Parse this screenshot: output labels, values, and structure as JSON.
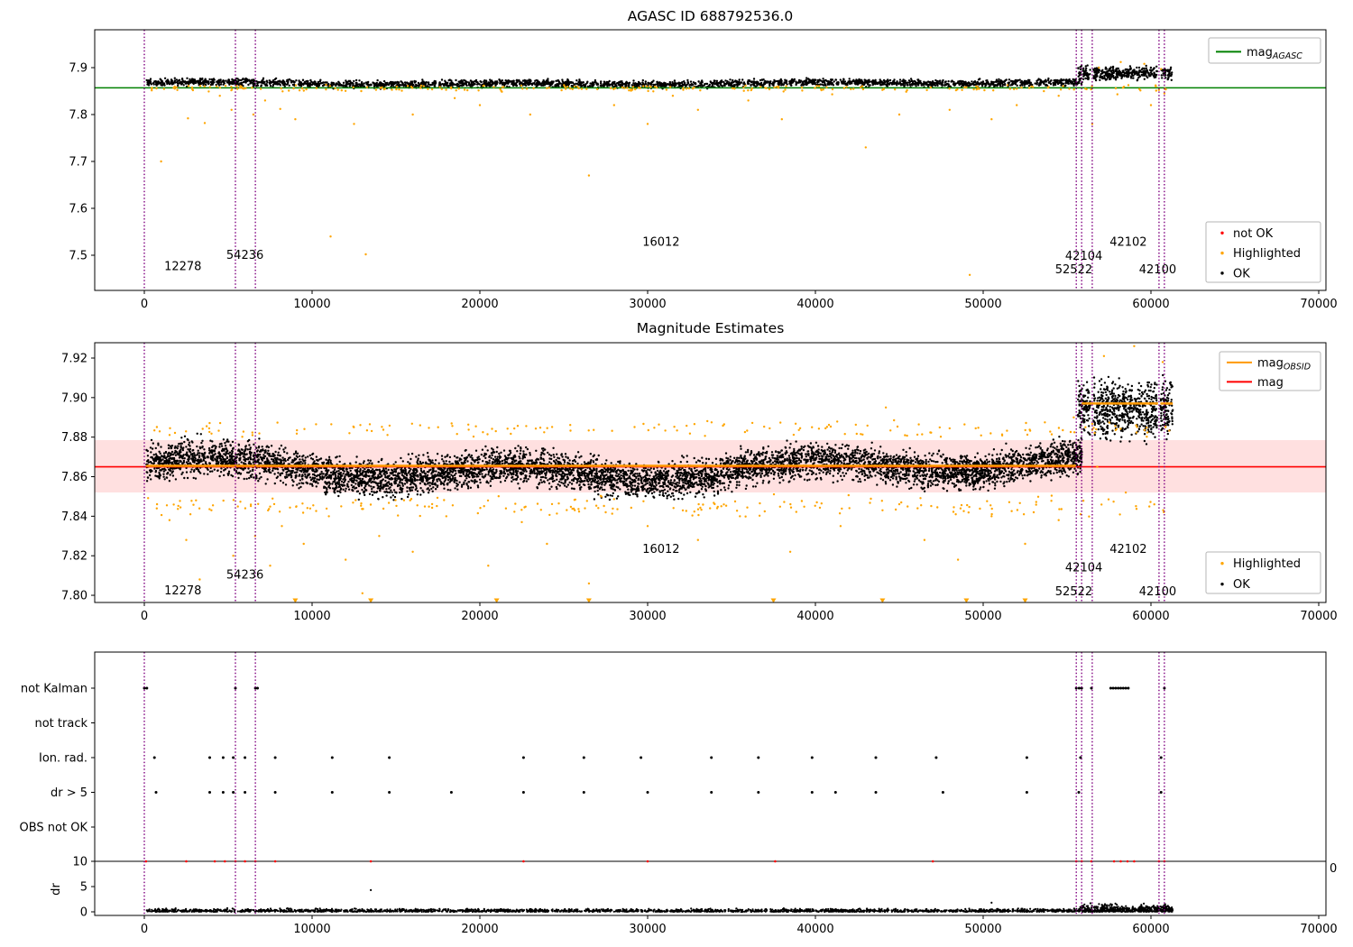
{
  "page": {
    "background": "#ffffff"
  },
  "colors": {
    "ok": "#000000",
    "highlighted": "#ffa500",
    "not_ok": "#ff0000",
    "mag_agasc_line": "#008000",
    "mag_obsid_line": "#ff9900",
    "mag_line": "#ff0000",
    "vline": "#800080",
    "band_fill": "rgba(255,0,0,0.12)",
    "frame": "#000000"
  },
  "chart_data": [
    {
      "type": "scatter",
      "title": "AGASC ID 688792536.0",
      "xlim": [
        -3000,
        70400
      ],
      "ylim": [
        7.425,
        7.98
      ],
      "xticks": [
        0,
        10000,
        20000,
        30000,
        40000,
        50000,
        60000,
        70000
      ],
      "yticks": [
        7.5,
        7.6,
        7.7,
        7.8,
        7.9
      ],
      "ytick_decimals": 1,
      "vlines": [
        0,
        5430,
        6620,
        55550,
        55870,
        56500,
        60480,
        60800
      ],
      "hlines": [
        {
          "y": 7.857,
          "color_key": "mag_agasc_line",
          "width": 1.5
        }
      ],
      "legend_upper": {
        "items": [
          {
            "sample": "line",
            "color_key": "mag_agasc_line",
            "label": "mag",
            "label_sub": "AGASC"
          }
        ]
      },
      "legend_lower": {
        "items": [
          {
            "sample": "dot",
            "color_key": "not_ok",
            "label": "not OK"
          },
          {
            "sample": "dot",
            "color_key": "highlighted",
            "label": "Highlighted"
          },
          {
            "sample": "dot",
            "color_key": "ok",
            "label": "OK"
          }
        ]
      },
      "annotations": [
        {
          "text": "12278",
          "x": 2300,
          "y": 7.468
        },
        {
          "text": "54236",
          "x": 6000,
          "y": 7.492
        },
        {
          "text": "16012",
          "x": 30800,
          "y": 7.52
        },
        {
          "text": "42104",
          "x": 56000,
          "y": 7.49
        },
        {
          "text": "52522",
          "x": 55400,
          "y": 7.462
        },
        {
          "text": "42102",
          "x": 58650,
          "y": 7.52
        },
        {
          "text": "42100",
          "x": 60400,
          "y": 7.462
        }
      ],
      "bands": [
        {
          "series": "ok",
          "x_min": 120,
          "x_max": 55900,
          "n": 2600,
          "y_center": 7.8665,
          "y_spread": 0.011,
          "wiggle": 0.002
        },
        {
          "series": "ok",
          "x_min": 55650,
          "x_max": 61250,
          "n": 420,
          "y_center": 7.888,
          "y_spread": 0.02,
          "wiggle": 0,
          "gaps": [
            [
              56380,
              56560
            ],
            [
              60380,
              60560
            ]
          ]
        },
        {
          "series": "highlighted",
          "x_min": 120,
          "x_max": 61200,
          "n": 230,
          "y_center": 7.856,
          "y_spread": 0.009,
          "wiggle": 0
        }
      ],
      "outliers": {
        "highlighted": [
          [
            1000,
            7.7
          ],
          [
            2600,
            7.792
          ],
          [
            3600,
            7.782
          ],
          [
            4500,
            7.84
          ],
          [
            5200,
            7.81
          ],
          [
            6500,
            7.8
          ],
          [
            7200,
            7.83
          ],
          [
            8100,
            7.812
          ],
          [
            9000,
            7.79
          ],
          [
            11100,
            7.54
          ],
          [
            12500,
            7.78
          ],
          [
            13200,
            7.502
          ],
          [
            16000,
            7.8
          ],
          [
            18500,
            7.835
          ],
          [
            20000,
            7.82
          ],
          [
            23000,
            7.8
          ],
          [
            26500,
            7.67
          ],
          [
            28000,
            7.82
          ],
          [
            30000,
            7.78
          ],
          [
            31500,
            7.84
          ],
          [
            33000,
            7.81
          ],
          [
            36000,
            7.83
          ],
          [
            38000,
            7.79
          ],
          [
            41000,
            7.843
          ],
          [
            43000,
            7.73
          ],
          [
            45000,
            7.8
          ],
          [
            48000,
            7.81
          ],
          [
            49200,
            7.458
          ],
          [
            50500,
            7.79
          ],
          [
            52000,
            7.82
          ],
          [
            54500,
            7.84
          ],
          [
            56500,
            7.78
          ],
          [
            58000,
            7.843
          ],
          [
            60000,
            7.82
          ],
          [
            60800,
            7.845
          ],
          [
            56900,
            7.9
          ],
          [
            58200,
            7.912
          ],
          [
            59600,
            7.908
          ],
          [
            60600,
            7.897
          ]
        ]
      }
    },
    {
      "type": "scatter",
      "title": "Magnitude Estimates",
      "xlim": [
        -3000,
        70400
      ],
      "ylim": [
        7.796,
        7.928
      ],
      "xticks": [
        0,
        10000,
        20000,
        30000,
        40000,
        50000,
        60000,
        70000
      ],
      "yticks": [
        7.8,
        7.82,
        7.84,
        7.86,
        7.88,
        7.9,
        7.92
      ],
      "ytick_decimals": 2,
      "vlines": [
        0,
        5430,
        6620,
        55550,
        55870,
        56500,
        60480,
        60800
      ],
      "shaded_band": {
        "y_min": 7.852,
        "y_max": 7.8785
      },
      "hlines": [
        {
          "y": 7.865,
          "color_key": "mag_line",
          "width": 1.6
        }
      ],
      "step_segments": [
        {
          "x0": 120,
          "x1": 55550,
          "y": 7.8655
        },
        {
          "x0": 55870,
          "x1": 60420,
          "y": 7.897
        },
        {
          "x0": 60560,
          "x1": 61300,
          "y": 7.897
        }
      ],
      "legend_upper": {
        "items": [
          {
            "sample": "line",
            "color_key": "mag_obsid_line",
            "label": "mag",
            "label_sub": "OBSID"
          },
          {
            "sample": "line",
            "color_key": "mag_line",
            "label": "mag"
          }
        ]
      },
      "legend_lower": {
        "items": [
          {
            "sample": "dot",
            "color_key": "highlighted",
            "label": "Highlighted"
          },
          {
            "sample": "dot",
            "color_key": "ok",
            "label": "OK"
          }
        ]
      },
      "annotations": [
        {
          "text": "12278",
          "x": 2300,
          "y": 7.8005
        },
        {
          "text": "54236",
          "x": 6000,
          "y": 7.8085
        },
        {
          "text": "16012",
          "x": 30800,
          "y": 7.8215
        },
        {
          "text": "42104",
          "x": 56000,
          "y": 7.812
        },
        {
          "text": "52522",
          "x": 55400,
          "y": 7.8
        },
        {
          "text": "42102",
          "x": 58650,
          "y": 7.8215
        },
        {
          "text": "42100",
          "x": 60400,
          "y": 7.8
        }
      ],
      "bands": [
        {
          "series": "ok",
          "x_min": 120,
          "x_max": 55900,
          "n": 6500,
          "y_center": 7.864,
          "y_spread": 0.0125,
          "wiggle": 0.004
        },
        {
          "series": "ok",
          "x_min": 55650,
          "x_max": 61300,
          "n": 800,
          "y_center": 7.894,
          "y_spread": 0.02,
          "wiggle": 0,
          "gaps": [
            [
              56380,
              56560
            ],
            [
              60380,
              60560
            ]
          ]
        },
        {
          "series": "highlighted",
          "x_min": 120,
          "x_max": 61200,
          "n": 200,
          "y_center": 7.845,
          "y_spread": 0.007,
          "wiggle": 0
        },
        {
          "series": "highlighted",
          "x_min": 120,
          "x_max": 61200,
          "n": 160,
          "y_center": 7.884,
          "y_spread": 0.006,
          "wiggle": 0
        }
      ],
      "outliers": {
        "highlighted": [
          [
            1500,
            7.838
          ],
          [
            2500,
            7.828
          ],
          [
            3300,
            7.808
          ],
          [
            4000,
            7.843
          ],
          [
            5300,
            7.82
          ],
          [
            6600,
            7.83
          ],
          [
            7500,
            7.815
          ],
          [
            8200,
            7.835
          ],
          [
            9500,
            7.826
          ],
          [
            11000,
            7.84
          ],
          [
            12000,
            7.818
          ],
          [
            13000,
            7.801
          ],
          [
            14000,
            7.83
          ],
          [
            16000,
            7.822
          ],
          [
            18000,
            7.84
          ],
          [
            20500,
            7.815
          ],
          [
            22500,
            7.837
          ],
          [
            24000,
            7.826
          ],
          [
            26500,
            7.806
          ],
          [
            27500,
            7.842
          ],
          [
            30000,
            7.835
          ],
          [
            33000,
            7.828
          ],
          [
            35500,
            7.84
          ],
          [
            38500,
            7.822
          ],
          [
            41500,
            7.835
          ],
          [
            44000,
            7.843
          ],
          [
            46500,
            7.828
          ],
          [
            48500,
            7.818
          ],
          [
            50500,
            7.84
          ],
          [
            52500,
            7.826
          ],
          [
            54500,
            7.838
          ],
          [
            56800,
            7.865
          ],
          [
            58500,
            7.852
          ],
          [
            60200,
            7.846
          ],
          [
            44200,
            7.895
          ],
          [
            55400,
            7.89
          ],
          [
            57200,
            7.921
          ],
          [
            59000,
            7.926
          ],
          [
            60700,
            7.918
          ]
        ]
      },
      "clipped_markers": {
        "y": 7.7975,
        "xs": [
          9000,
          13500,
          21000,
          26500,
          37500,
          44000,
          49000,
          52500
        ]
      }
    },
    {
      "type": "scatter",
      "title": "",
      "xlim": [
        -3000,
        70400
      ],
      "xticks": [
        0,
        10000,
        20000,
        30000,
        40000,
        50000,
        60000,
        70000
      ],
      "vlines": [
        0,
        5430,
        6620,
        55550,
        55870,
        56500,
        60480,
        60800
      ],
      "categories": [
        "not Kalman",
        "not track",
        "Ion. rad.",
        "dr > 5",
        "OBS not OK"
      ],
      "category_points": {
        "not Kalman": [
          0,
          150,
          5430,
          6620,
          6750,
          55550,
          55720,
          55870,
          56450,
          57600,
          57750,
          57900,
          58050,
          58200,
          58350,
          58500,
          58650,
          60800
        ],
        "not track": [],
        "Ion. rad.": [
          600,
          3900,
          4700,
          5300,
          6000,
          7800,
          11200,
          14600,
          22600,
          26200,
          29600,
          33800,
          36600,
          39800,
          43600,
          47200,
          52600,
          55800,
          60600
        ],
        "dr > 5": [
          700,
          3900,
          4700,
          5300,
          6000,
          7800,
          11200,
          14600,
          18300,
          22600,
          26200,
          30000,
          33800,
          36600,
          39800,
          41200,
          43600,
          47600,
          52600,
          55700,
          60600
        ],
        "OBS not OK": []
      },
      "dr_axis": {
        "label": "dr",
        "ticks": [
          0,
          5,
          10
        ],
        "hline": 10,
        "right_label": "0",
        "red_xs": [
          100,
          2500,
          4200,
          4800,
          5430,
          6000,
          6620,
          7800,
          13500,
          22600,
          30000,
          37600,
          47000,
          55550,
          55870,
          56450,
          57800,
          58200,
          58600,
          59000,
          60480,
          60800
        ],
        "black_band": {
          "x_min": 120,
          "x_max": 61300,
          "n": 2300,
          "amplitude": 0.8
        },
        "black_band_right": {
          "x_min": 55700,
          "x_max": 61300,
          "n": 350,
          "amplitude": 2.0
        },
        "extra_points": [
          [
            13500,
            4.3
          ],
          [
            50500,
            1.8
          ]
        ]
      }
    }
  ]
}
